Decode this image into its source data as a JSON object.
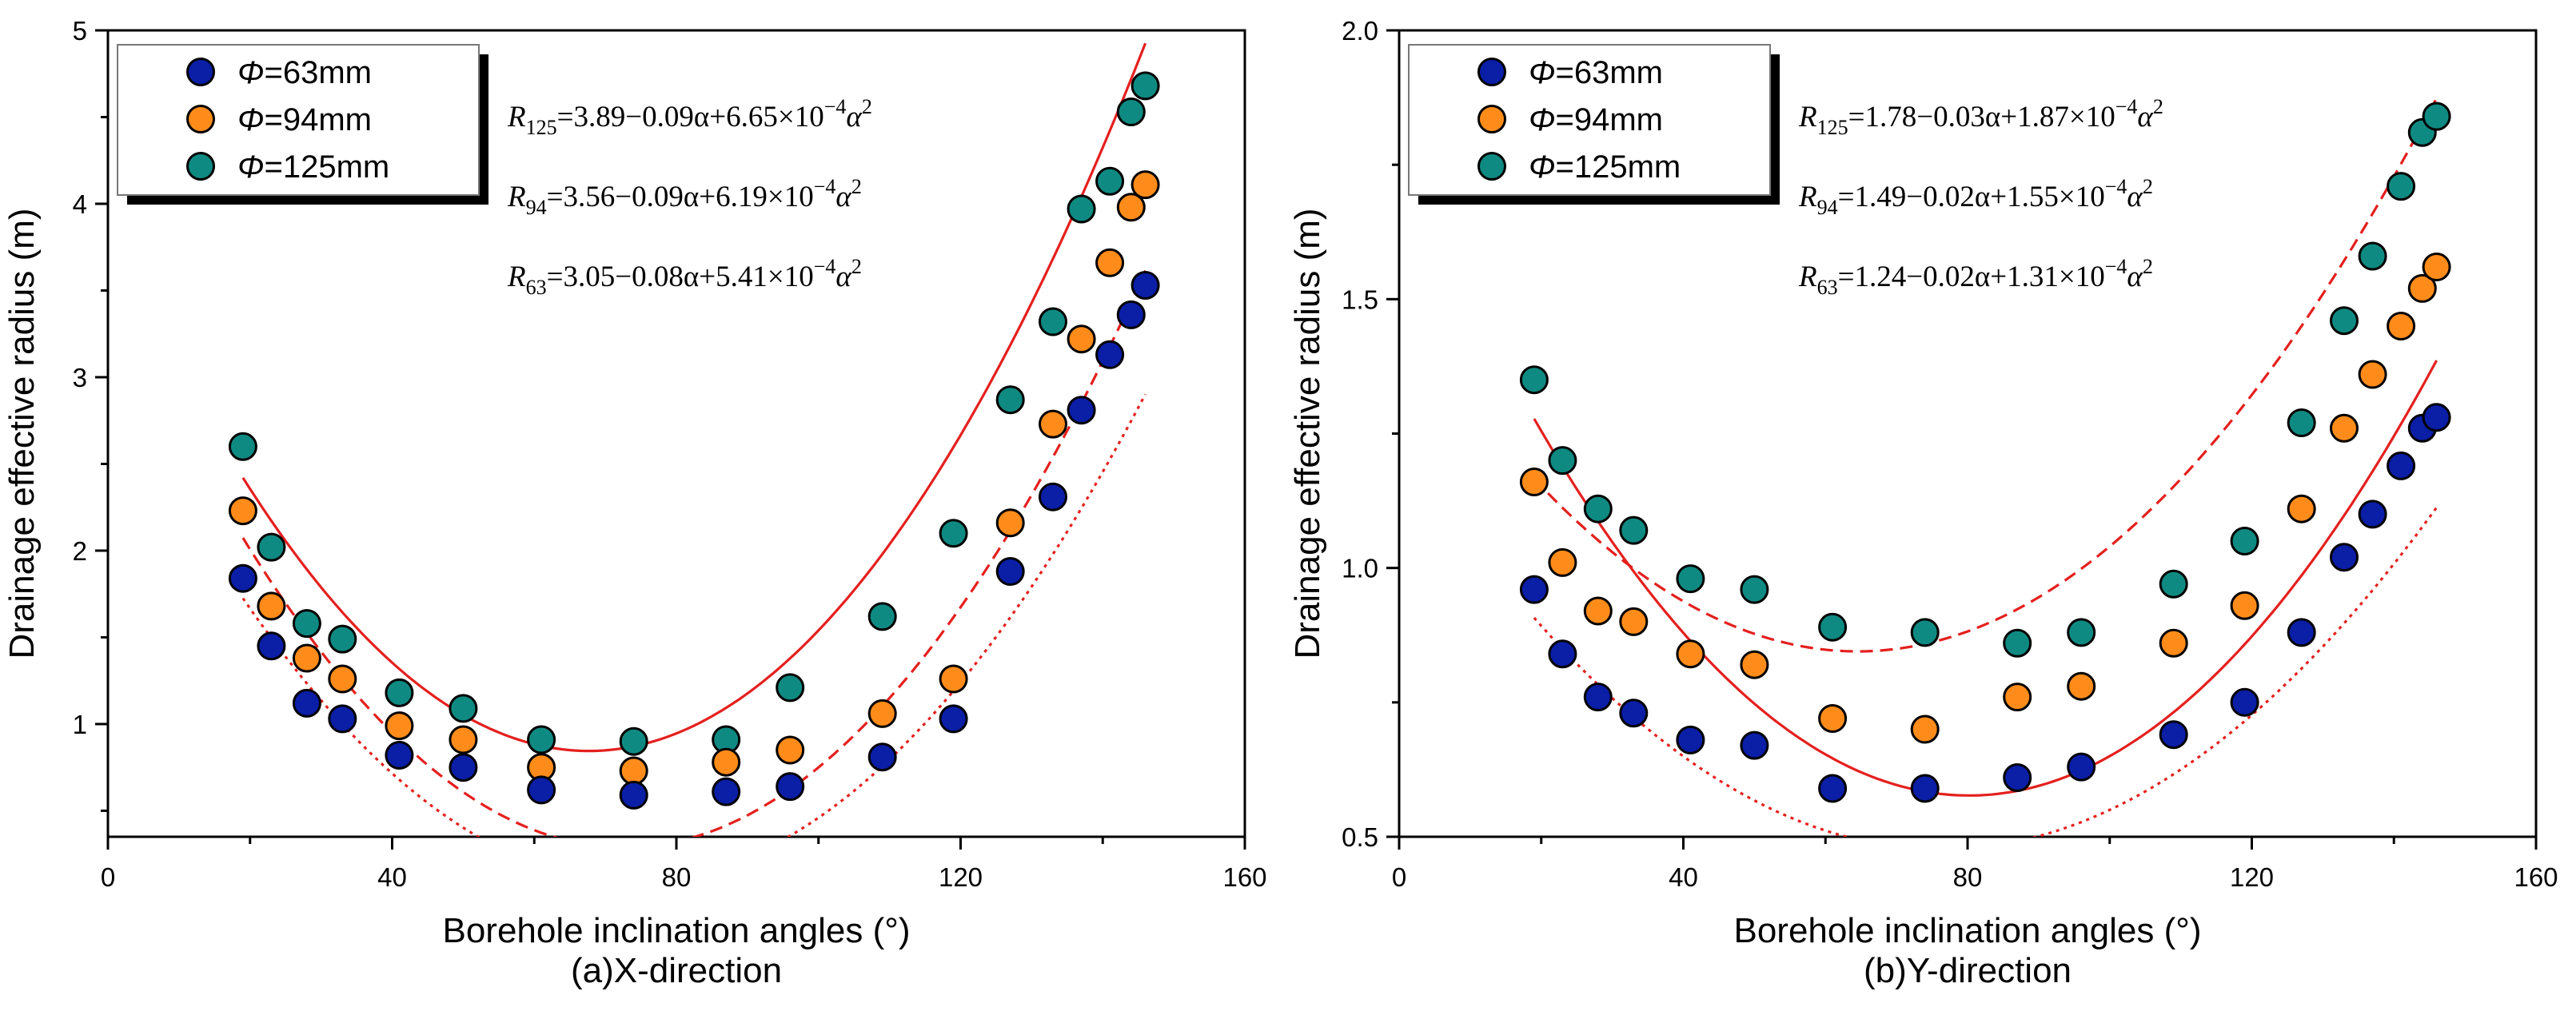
{
  "chart_data": [
    {
      "type": "scatter",
      "panel_caption": "(a)X-direction",
      "xlabel": "Borehole inclination angles (°)",
      "ylabel": "Drainage effective radius (m)",
      "xlim": [
        0,
        160
      ],
      "ylim": [
        0.35,
        5
      ],
      "xticks": [
        0,
        40,
        80,
        120,
        160
      ],
      "yticks": [
        1,
        2,
        3,
        4,
        5
      ],
      "ytick_format": 0,
      "legend_position": "top-left",
      "x": [
        19,
        23,
        28,
        33,
        41,
        50,
        61,
        74,
        87,
        96,
        109,
        119,
        127,
        133,
        137,
        141,
        144,
        146
      ],
      "series": [
        {
          "name": "Φ=63mm",
          "color": "#0a1ea6",
          "fit_style": "dotted",
          "values": [
            1.84,
            1.45,
            1.12,
            1.03,
            0.82,
            0.75,
            0.62,
            0.59,
            0.61,
            0.64,
            0.81,
            1.03,
            1.88,
            2.31,
            2.81,
            3.13,
            3.36,
            3.53
          ],
          "fit": [
            3.05,
            -0.08,
            0.000541
          ]
        },
        {
          "name": "Φ=94mm",
          "color": "#ff8c1a",
          "fit_style": "dashed",
          "values": [
            2.23,
            1.68,
            1.38,
            1.26,
            0.99,
            0.91,
            0.75,
            0.73,
            0.78,
            0.85,
            1.06,
            1.26,
            2.16,
            2.73,
            3.22,
            3.66,
            3.98,
            4.11
          ],
          "fit": [
            3.56,
            -0.09,
            0.000619
          ]
        },
        {
          "name": "Φ=125mm",
          "color": "#0f8a82",
          "fit_style": "solid",
          "values": [
            2.6,
            2.02,
            1.58,
            1.49,
            1.18,
            1.09,
            0.91,
            0.9,
            0.91,
            1.21,
            1.62,
            2.1,
            2.87,
            3.32,
            3.97,
            4.13,
            4.53,
            4.68
          ],
          "fit": [
            3.89,
            -0.09,
            0.000665
          ]
        }
      ],
      "annotations": [
        {
          "label": "R",
          "subscript": "125",
          "text": "=3.89−0.09α+6.65×10",
          "exponent": "−4",
          "tail": "α",
          "power": "2"
        },
        {
          "label": "R",
          "subscript": "94",
          "text": "=3.56−0.09α+6.19×10",
          "exponent": "−4",
          "tail": "α",
          "power": "2"
        },
        {
          "label": "R",
          "subscript": "63",
          "text": "=3.05−0.08α+5.41×10",
          "exponent": "−4",
          "tail": "α",
          "power": "2"
        }
      ]
    },
    {
      "type": "scatter",
      "panel_caption": "(b)Y-direction",
      "xlabel": "Borehole inclination angles (°)",
      "ylabel": "Drainage effective radius (m)",
      "xlim": [
        0,
        160
      ],
      "ylim": [
        0.5,
        2.0
      ],
      "xticks": [
        0,
        40,
        80,
        120,
        160
      ],
      "yticks": [
        0.5,
        1.0,
        1.5,
        2.0
      ],
      "ytick_format": 1,
      "legend_position": "top-left",
      "x": [
        19,
        23,
        28,
        33,
        41,
        50,
        61,
        74,
        87,
        96,
        109,
        119,
        127,
        133,
        137,
        141,
        144,
        146
      ],
      "series": [
        {
          "name": "Φ=63mm",
          "color": "#0a1ea6",
          "fit_style": "dotted",
          "values": [
            0.96,
            0.84,
            0.76,
            0.73,
            0.68,
            0.67,
            0.59,
            0.59,
            0.61,
            0.63,
            0.69,
            0.75,
            0.88,
            1.02,
            1.1,
            1.19,
            1.26,
            1.28
          ],
          "fit": [
            1.24,
            -0.02,
            0.000131
          ]
        },
        {
          "name": "Φ=94mm",
          "color": "#ff8c1a",
          "fit_style": "dashed",
          "values": [
            1.16,
            1.01,
            0.92,
            0.9,
            0.84,
            0.82,
            0.72,
            0.7,
            0.76,
            0.78,
            0.86,
            0.93,
            1.11,
            1.26,
            1.36,
            1.45,
            1.52,
            1.56
          ],
          "fit": [
            1.49,
            -0.02,
            0.000155
          ]
        },
        {
          "name": "Φ=125mm",
          "color": "#0f8a82",
          "fit_style": "solid",
          "values": [
            1.35,
            1.2,
            1.11,
            1.07,
            0.98,
            0.96,
            0.89,
            0.88,
            0.86,
            0.88,
            0.97,
            1.05,
            1.27,
            1.46,
            1.58,
            1.71,
            1.81,
            1.84
          ],
          "fit": [
            1.78,
            -0.03,
            0.000187
          ]
        }
      ],
      "annotations": [
        {
          "label": "R",
          "subscript": "125",
          "text": "=1.78−0.03α+1.87×10",
          "exponent": "−4",
          "tail": "α",
          "power": "2"
        },
        {
          "label": "R",
          "subscript": "94",
          "text": "=1.49−0.02α+1.55×10",
          "exponent": "−4",
          "tail": "α",
          "power": "2"
        },
        {
          "label": "R",
          "subscript": "63",
          "text": "=1.24−0.02α+1.31×10",
          "exponent": "−4",
          "tail": "α",
          "power": "2"
        }
      ]
    }
  ],
  "colors": {
    "fit_line": "#e4201e",
    "marker_edge": "#000000",
    "axis": "#000000"
  }
}
